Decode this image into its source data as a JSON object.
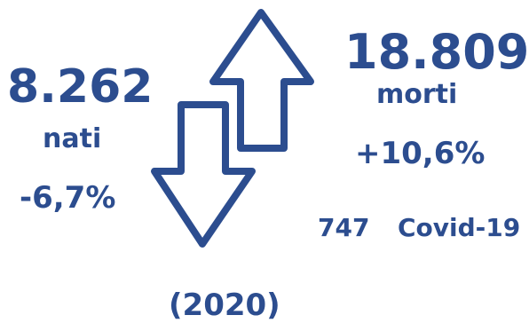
{
  "colors": {
    "primary": "#2c4d8f"
  },
  "births": {
    "value": "8.262",
    "label": "nati",
    "change": "-6,7%"
  },
  "deaths": {
    "value": "18.809",
    "label": "morti",
    "change": "+10,6%"
  },
  "covid": {
    "count": "747",
    "label": "Covid-19"
  },
  "year": "(2020)",
  "icons": {
    "up": "arrow-up-outline-icon",
    "down": "arrow-down-outline-icon"
  }
}
